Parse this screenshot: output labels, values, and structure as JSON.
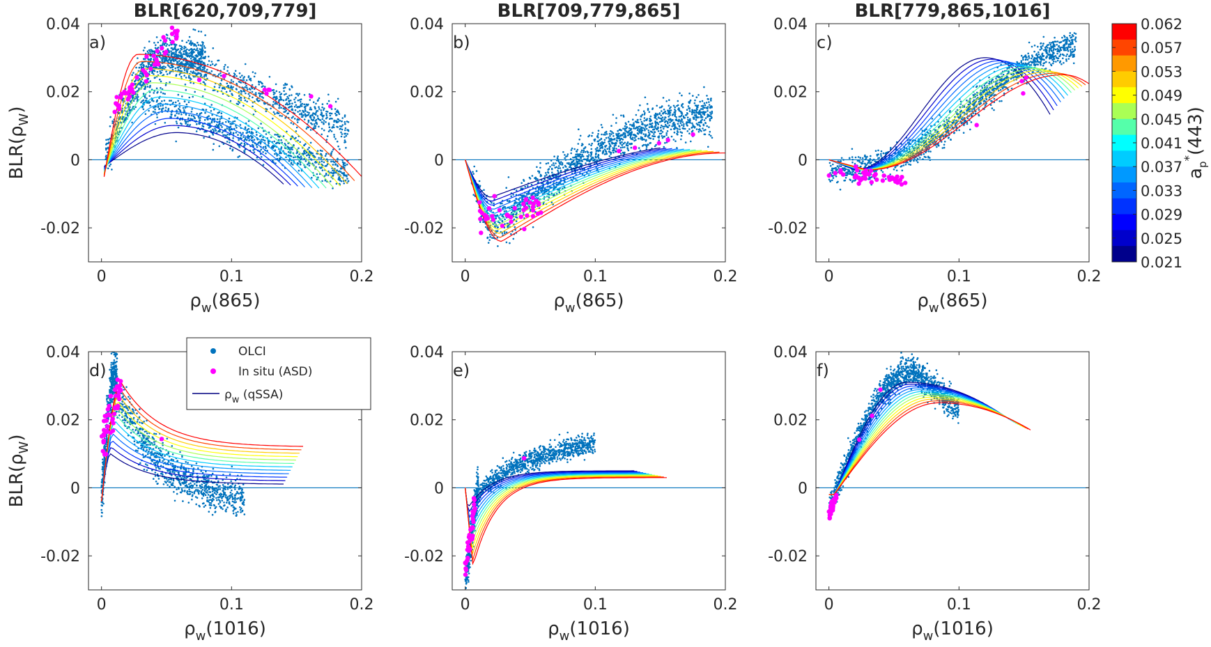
{
  "chart_data": [
    {
      "type": "scatter",
      "panel_label": "a)",
      "title": "BLR[620,709,779]",
      "xlabel": "ρ",
      "xlabel_sub": "w",
      "xlabel_arg": "(865)",
      "ylabel": "BLR(ρ",
      "ylabel_sub": "W",
      "ylabel_end": ")",
      "xlim": [
        -0.01,
        0.2
      ],
      "ylim": [
        -0.03,
        0.04
      ],
      "xticks": [
        "0",
        "0.1",
        "0.2"
      ],
      "yticks": [
        "-0.02",
        "0",
        "0.02",
        "0.04"
      ],
      "curve_model": {
        "kind": "a",
        "x0": [
          0.002,
          0.002
        ],
        "xpeak": [
          0.058,
          0.028
        ],
        "ymin": [
          -0.002,
          -0.005
        ],
        "ypeak": [
          0.008,
          0.031
        ],
        "slope": [
          0.22,
          0.12
        ],
        "xmax": [
          0.14,
          0.2
        ]
      },
      "cloud": [
        {
          "xmin": 0.003,
          "xmax": 0.08,
          "shape": "rise",
          "x0": 0.0,
          "y0": -0.003,
          "x1": 0.05,
          "y1": 0.03,
          "spread": 0.006,
          "n": 900
        },
        {
          "xmin": 0.05,
          "xmax": 0.19,
          "shape": "line",
          "x0": 0.05,
          "y0": 0.03,
          "x1": 0.17,
          "y1": 0.012,
          "spread": 0.005,
          "n": 700
        },
        {
          "xmin": 0.03,
          "xmax": 0.19,
          "shape": "line",
          "x0": 0.03,
          "y0": 0.018,
          "x1": 0.19,
          "y1": -0.004,
          "spread": 0.005,
          "n": 800
        }
      ],
      "insitu": [
        {
          "xmin": 0.01,
          "xmax": 0.06,
          "x0": 0.01,
          "y0": 0.015,
          "x1": 0.055,
          "y1": 0.036,
          "spread": 0.003,
          "n": 50
        },
        {
          "xmin": 0.06,
          "xmax": 0.18,
          "x0": 0.06,
          "y0": 0.028,
          "x1": 0.18,
          "y1": 0.015,
          "spread": 0.002,
          "n": 8
        }
      ]
    },
    {
      "type": "scatter",
      "panel_label": "b)",
      "title": "BLR[709,779,865]",
      "xlabel": "ρ",
      "xlabel_sub": "w",
      "xlabel_arg": "(865)",
      "ylabel": "",
      "ylabel_sub": "",
      "ylabel_end": "",
      "xlim": [
        -0.01,
        0.2
      ],
      "ylim": [
        -0.03,
        0.04
      ],
      "xticks": [
        "0",
        "0.1",
        "0.2"
      ],
      "yticks": [
        "-0.02",
        "0",
        "0.02",
        "0.04"
      ],
      "curve_model": {
        "kind": "b",
        "x0": [
          0.0,
          0.0
        ],
        "xmin": [
          0.02,
          0.028
        ],
        "ymin": [
          -0.011,
          -0.024
        ],
        "yend": [
          0.005,
          0.002
        ],
        "xmax": [
          0.15,
          0.2
        ]
      },
      "cloud": [
        {
          "xmin": 0.005,
          "xmax": 0.19,
          "shape": "valley",
          "xm": 0.02,
          "ym": -0.02,
          "yend": 0.013,
          "spread": 0.006,
          "n": 1600
        }
      ],
      "insitu": [
        {
          "xmin": 0.01,
          "xmax": 0.06,
          "x0": 0.01,
          "y0": -0.018,
          "x1": 0.06,
          "y1": -0.012,
          "spread": 0.004,
          "n": 40
        },
        {
          "xmin": 0.09,
          "xmax": 0.18,
          "x0": 0.09,
          "y0": -0.002,
          "x1": 0.18,
          "y1": 0.009,
          "spread": 0.002,
          "n": 5
        }
      ]
    },
    {
      "type": "scatter",
      "panel_label": "c)",
      "title": "BLR[779,865,1016]",
      "xlabel": "ρ",
      "xlabel_sub": "w",
      "xlabel_arg": "(865)",
      "ylabel": "",
      "ylabel_sub": "",
      "ylabel_end": "",
      "xlim": [
        -0.01,
        0.2
      ],
      "ylim": [
        -0.03,
        0.04
      ],
      "xticks": [
        "0",
        "0.1",
        "0.2"
      ],
      "yticks": [
        "-0.02",
        "0",
        "0.02",
        "0.04"
      ],
      "curve_model": {
        "kind": "c",
        "x0": [
          0.0,
          0.0
        ],
        "xmin": [
          0.02,
          0.03
        ],
        "ymin": [
          -0.003,
          -0.003
        ],
        "xpeak": [
          0.12,
          0.18
        ],
        "ypeak": [
          0.03,
          0.025
        ],
        "xmax": [
          0.17,
          0.2
        ]
      },
      "cloud": [
        {
          "xmin": 0.0,
          "xmax": 0.19,
          "shape": "sigmoid",
          "ylo": -0.005,
          "yhi": 0.036,
          "xc": 0.11,
          "w": 0.03,
          "spread": 0.004,
          "n": 1500
        }
      ],
      "insitu": [
        {
          "xmin": 0.0,
          "xmax": 0.06,
          "x0": 0.0,
          "y0": -0.004,
          "x1": 0.06,
          "y1": -0.006,
          "spread": 0.002,
          "n": 45
        },
        {
          "xmin": 0.11,
          "xmax": 0.18,
          "x0": 0.11,
          "y0": 0.01,
          "x1": 0.18,
          "y1": 0.033,
          "spread": 0.003,
          "n": 4
        }
      ]
    },
    {
      "type": "scatter",
      "panel_label": "d)",
      "title": "",
      "xlabel": "ρ",
      "xlabel_sub": "w",
      "xlabel_arg": "(1016)",
      "ylabel": "BLR(ρ",
      "ylabel_sub": "W",
      "ylabel_end": ")",
      "xlim": [
        -0.01,
        0.2
      ],
      "ylim": [
        -0.03,
        0.04
      ],
      "xticks": [
        "0",
        "0.1",
        "0.2"
      ],
      "yticks": [
        "-0.02",
        "0",
        "0.02",
        "0.04"
      ],
      "curve_model": {
        "kind": "d",
        "x0": [
          0.0,
          0.0
        ],
        "xpeak": [
          0.007,
          0.015
        ],
        "ypeak": [
          0.01,
          0.031
        ],
        "yend": [
          0.001,
          0.012
        ],
        "xmax": [
          0.14,
          0.155
        ]
      },
      "cloud": [
        {
          "xmin": 0.0,
          "xmax": 0.012,
          "shape": "rise",
          "x0": 0.0,
          "y0": -0.004,
          "x1": 0.01,
          "y1": 0.032,
          "spread": 0.008,
          "n": 500
        },
        {
          "xmin": 0.01,
          "xmax": 0.11,
          "shape": "decay",
          "x0": 0.01,
          "y0": 0.03,
          "x1": 0.11,
          "y1": -0.005,
          "spread": 0.006,
          "n": 900
        }
      ],
      "insitu": [
        {
          "xmin": 0.0,
          "xmax": 0.015,
          "x0": 0.0,
          "y0": 0.015,
          "x1": 0.015,
          "y1": 0.03,
          "spread": 0.006,
          "n": 45
        },
        {
          "xmin": 0.04,
          "xmax": 0.05,
          "x0": 0.04,
          "y0": 0.015,
          "x1": 0.05,
          "y1": 0.015,
          "spread": 0.001,
          "n": 1
        }
      ]
    },
    {
      "type": "scatter",
      "panel_label": "e)",
      "title": "",
      "xlabel": "ρ",
      "xlabel_sub": "w",
      "xlabel_arg": "(1016)",
      "ylabel": "",
      "ylabel_sub": "",
      "ylabel_end": "",
      "xlim": [
        -0.01,
        0.2
      ],
      "ylim": [
        -0.03,
        0.04
      ],
      "xticks": [
        "0",
        "0.1",
        "0.2"
      ],
      "yticks": [
        "-0.02",
        "0",
        "0.02",
        "0.04"
      ],
      "curve_model": {
        "kind": "e",
        "x0": [
          0.0,
          0.0
        ],
        "xmin": [
          0.002,
          0.006
        ],
        "ymin": [
          -0.006,
          -0.023
        ],
        "yend": [
          0.005,
          0.003
        ],
        "xmax": [
          0.13,
          0.155
        ]
      },
      "cloud": [
        {
          "xmin": 0.0,
          "xmax": 0.01,
          "shape": "line",
          "x0": 0.001,
          "y0": -0.025,
          "x1": 0.01,
          "y1": 0.0,
          "spread": 0.005,
          "n": 400
        },
        {
          "xmin": 0.005,
          "xmax": 0.1,
          "shape": "log",
          "x0": 0.005,
          "y0": -0.005,
          "x1": 0.1,
          "y1": 0.013,
          "spread": 0.003,
          "n": 900
        }
      ],
      "insitu": [
        {
          "xmin": 0.0,
          "xmax": 0.008,
          "x0": 0.0,
          "y0": -0.025,
          "x1": 0.008,
          "y1": -0.005,
          "spread": 0.004,
          "n": 40
        },
        {
          "xmin": 0.04,
          "xmax": 0.05,
          "x0": 0.04,
          "y0": 0.009,
          "x1": 0.05,
          "y1": 0.009,
          "spread": 0.001,
          "n": 1
        }
      ]
    },
    {
      "type": "scatter",
      "panel_label": "f)",
      "title": "",
      "xlabel": "ρ",
      "xlabel_sub": "w",
      "xlabel_arg": "(1016)",
      "ylabel": "",
      "ylabel_sub": "",
      "ylabel_end": "",
      "xlim": [
        -0.01,
        0.2
      ],
      "ylim": [
        -0.03,
        0.04
      ],
      "xticks": [
        "0",
        "0.1",
        "0.2"
      ],
      "yticks": [
        "-0.02",
        "0",
        "0.02",
        "0.04"
      ],
      "curve_model": {
        "kind": "f",
        "x0": [
          0.0,
          0.0
        ],
        "xmin": [
          0.004,
          0.004
        ],
        "ymin": [
          -0.002,
          -0.002
        ],
        "xpeak": [
          0.06,
          0.085
        ],
        "ypeak": [
          0.031,
          0.025
        ],
        "yend": [
          0.015,
          0.017
        ],
        "xmax": [
          0.135,
          0.155
        ]
      },
      "cloud": [
        {
          "xmin": 0.0,
          "xmax": 0.1,
          "shape": "hump",
          "x0": 0.0,
          "y0": -0.006,
          "xp": 0.065,
          "yp": 0.034,
          "spread": 0.004,
          "n": 1400
        }
      ],
      "insitu": [
        {
          "xmin": 0.0,
          "xmax": 0.006,
          "x0": 0.0,
          "y0": -0.008,
          "x1": 0.006,
          "y1": -0.002,
          "spread": 0.002,
          "n": 40
        },
        {
          "xmin": 0.02,
          "xmax": 0.05,
          "x0": 0.02,
          "y0": 0.01,
          "x1": 0.045,
          "y1": 0.033,
          "spread": 0.002,
          "n": 3
        }
      ]
    }
  ],
  "legend": {
    "items": [
      {
        "label": "OLCI",
        "marker": "dot",
        "color": "#0072bd"
      },
      {
        "label": "In situ (ASD)",
        "marker": "dot",
        "color": "#ff00ff"
      },
      {
        "label": "ρ",
        "label_sub": "w",
        "label_end": " (qSSA)",
        "marker": "line",
        "color": "#000080"
      }
    ]
  },
  "colorbar": {
    "label": "a",
    "label_sub": "p",
    "label_sup": "*",
    "label_end": "(443)",
    "ticks": [
      "0.062",
      "0.057",
      "0.053",
      "0.049",
      "0.045",
      "0.041",
      "0.037",
      "0.033",
      "0.029",
      "0.025",
      "0.021"
    ],
    "colors": [
      "#ff0000",
      "#ff4500",
      "#ff9900",
      "#ffcc00",
      "#ffff00",
      "#aaff55",
      "#55ffaa",
      "#00ffff",
      "#00ccff",
      "#0099ff",
      "#0066ff",
      "#0033ff",
      "#0000ff",
      "#0000cc",
      "#00008b"
    ]
  },
  "colors": {
    "olci": "#0072bd",
    "insitu": "#ff00ff",
    "zero_line": "#0072bd",
    "axes": "#262626"
  }
}
